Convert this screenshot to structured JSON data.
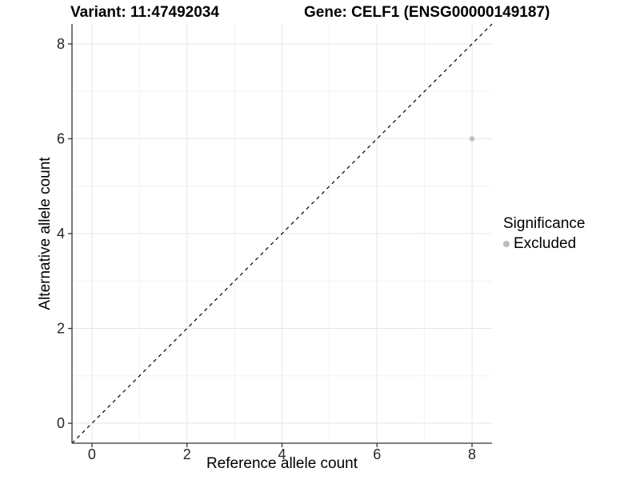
{
  "chart_data": {
    "type": "scatter",
    "title_left": "Variant: 11:47492034",
    "title_right": "Gene: CELF1 (ENSG00000149187)",
    "xlabel": "Reference allele count",
    "ylabel": "Alternative allele count",
    "xlim": [
      -0.42,
      8.42
    ],
    "ylim": [
      -0.42,
      8.42
    ],
    "x_ticks": [
      0,
      2,
      4,
      6,
      8
    ],
    "y_ticks": [
      0,
      2,
      4,
      6,
      8
    ],
    "x_minor_ticks": [
      1,
      3,
      5,
      7
    ],
    "y_minor_ticks": [
      1,
      3,
      5,
      7
    ],
    "grid": true,
    "series": [
      {
        "name": "Excluded",
        "color": "#bdbdbd",
        "marker": "dot",
        "points": [
          {
            "x": 8,
            "y": 6
          }
        ]
      }
    ],
    "reference_line": {
      "type": "identity",
      "style": "dashed",
      "color": "#000000"
    },
    "legend": {
      "title": "Significance",
      "position": "right",
      "items": [
        {
          "label": "Excluded",
          "color": "#bdbdbd",
          "marker": "dot"
        }
      ]
    },
    "colors": {
      "background": "#ffffff",
      "grid_major": "#e8e8e8",
      "grid_minor": "#f2f2f2",
      "axis_line": "#333333",
      "tick_text": "#262626",
      "point": "#bdbdbd",
      "dashed_line": "#000000"
    }
  }
}
